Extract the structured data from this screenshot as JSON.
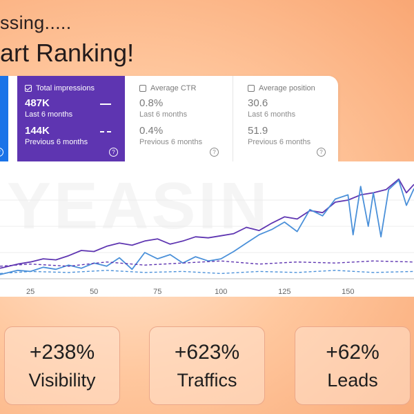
{
  "headline": {
    "line1": "ssing.....",
    "line2": "art Ranking!"
  },
  "metrics": {
    "impressions": {
      "label": "Total impressions",
      "checked": true,
      "color": "#5e35b1",
      "current_value": "487K",
      "current_period": "Last 6 months",
      "previous_value": "144K",
      "previous_period": "Previous 6 months"
    },
    "ctr": {
      "label": "Average CTR",
      "checked": false,
      "current_value": "0.8%",
      "current_period": "Last 6 months",
      "previous_value": "0.4%",
      "previous_period": "Previous 6 months"
    },
    "position": {
      "label": "Average position",
      "checked": false,
      "current_value": "30.6",
      "current_period": "Last 6 months",
      "previous_value": "51.9",
      "previous_period": "Previous 6 months"
    },
    "clicks_color": "#1a73e8",
    "help_glyph": "?"
  },
  "watermark": "YEASIN",
  "chart_data": {
    "type": "line",
    "x_ticks": [
      25,
      50,
      75,
      100,
      125,
      150
    ],
    "xlim": [
      13,
      176
    ],
    "ylim": [
      0,
      100
    ],
    "grid": true,
    "series": [
      {
        "key": "impressions_last",
        "color": "#5e35b1",
        "style": "solid",
        "x": [
          13,
          20,
          25,
          30,
          35,
          40,
          45,
          50,
          55,
          60,
          65,
          70,
          75,
          80,
          85,
          90,
          95,
          100,
          105,
          110,
          115,
          120,
          125,
          130,
          135,
          140,
          145,
          150,
          155,
          160,
          165,
          170,
          173,
          176
        ],
        "y": [
          10,
          14,
          16,
          19,
          18,
          22,
          27,
          26,
          31,
          34,
          32,
          36,
          38,
          33,
          36,
          40,
          39,
          41,
          43,
          49,
          46,
          53,
          59,
          57,
          65,
          63,
          73,
          75,
          80,
          82,
          85,
          95,
          82,
          90
        ]
      },
      {
        "key": "clicks_last",
        "color": "#4a90d9",
        "style": "solid",
        "x": [
          13,
          20,
          25,
          30,
          35,
          40,
          45,
          50,
          55,
          60,
          65,
          70,
          75,
          80,
          85,
          90,
          95,
          100,
          105,
          110,
          115,
          120,
          125,
          130,
          135,
          140,
          145,
          150,
          152,
          155,
          158,
          160,
          163,
          166,
          170,
          173,
          176
        ],
        "y": [
          4,
          8,
          7,
          11,
          9,
          13,
          10,
          15,
          12,
          20,
          9,
          25,
          19,
          23,
          15,
          21,
          17,
          19,
          26,
          34,
          42,
          47,
          54,
          45,
          66,
          60,
          76,
          80,
          42,
          88,
          50,
          82,
          40,
          85,
          94,
          70,
          86
        ]
      },
      {
        "key": "impressions_previous",
        "color": "#5e35b1",
        "style": "dashed",
        "x": [
          13,
          25,
          40,
          55,
          70,
          85,
          100,
          115,
          130,
          145,
          160,
          176
        ],
        "y": [
          12,
          14,
          12,
          16,
          13,
          15,
          17,
          14,
          16,
          15,
          17,
          16
        ]
      },
      {
        "key": "clicks_previous",
        "color": "#4a90d9",
        "style": "dashed",
        "x": [
          13,
          25,
          40,
          55,
          70,
          85,
          100,
          115,
          130,
          145,
          160,
          176
        ],
        "y": [
          5,
          7,
          6,
          8,
          6,
          7,
          5,
          7,
          6,
          8,
          6,
          7
        ]
      }
    ]
  },
  "kpis": [
    {
      "value": "+238%",
      "label": "Visibility"
    },
    {
      "value": "+623%",
      "label": "Traffics"
    },
    {
      "value": "+62%",
      "label": "Leads"
    }
  ]
}
